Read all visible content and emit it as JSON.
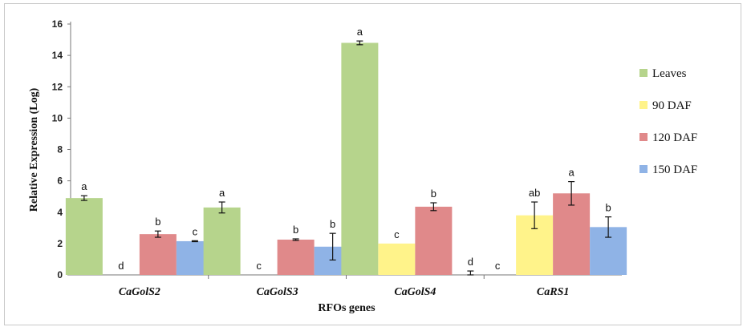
{
  "chart_data": {
    "type": "bar",
    "title": "",
    "xlabel": "RFOs genes",
    "ylabel": "Relative Expression (Log)",
    "ylim": [
      0,
      16
    ],
    "yticks": [
      0,
      2,
      4,
      6,
      8,
      10,
      12,
      14,
      16
    ],
    "grid": false,
    "legend_position": "right",
    "categories": [
      "CaGolS2",
      "CaGolS3",
      "CaGolS4",
      "CaRS1"
    ],
    "series": [
      {
        "name": "Leaves",
        "color": "#b6d48c",
        "values": [
          4.9,
          4.3,
          14.8,
          0.0
        ],
        "errors": [
          0.15,
          0.35,
          0.12,
          0.0
        ],
        "letters": [
          "a",
          "a",
          "a",
          "c"
        ]
      },
      {
        "name": "90 DAF",
        "color": "#fff38a",
        "values": [
          0.0,
          0.0,
          2.0,
          3.8
        ],
        "errors": [
          0.0,
          0.0,
          0.0,
          0.85
        ],
        "letters": [
          "d",
          "c",
          "c",
          "ab"
        ]
      },
      {
        "name": "120 DAF",
        "color": "#e0898a",
        "values": [
          2.6,
          2.25,
          4.35,
          5.2
        ],
        "errors": [
          0.2,
          0.05,
          0.25,
          0.75
        ],
        "letters": [
          "b",
          "b",
          "b",
          "a"
        ]
      },
      {
        "name": "150 DAF",
        "color": "#8fb3e6",
        "values": [
          2.15,
          1.8,
          0.0,
          3.05
        ],
        "errors": [
          0.03,
          0.85,
          0.25,
          0.65
        ],
        "letters": [
          "c",
          "b",
          "d",
          "b"
        ]
      }
    ]
  }
}
